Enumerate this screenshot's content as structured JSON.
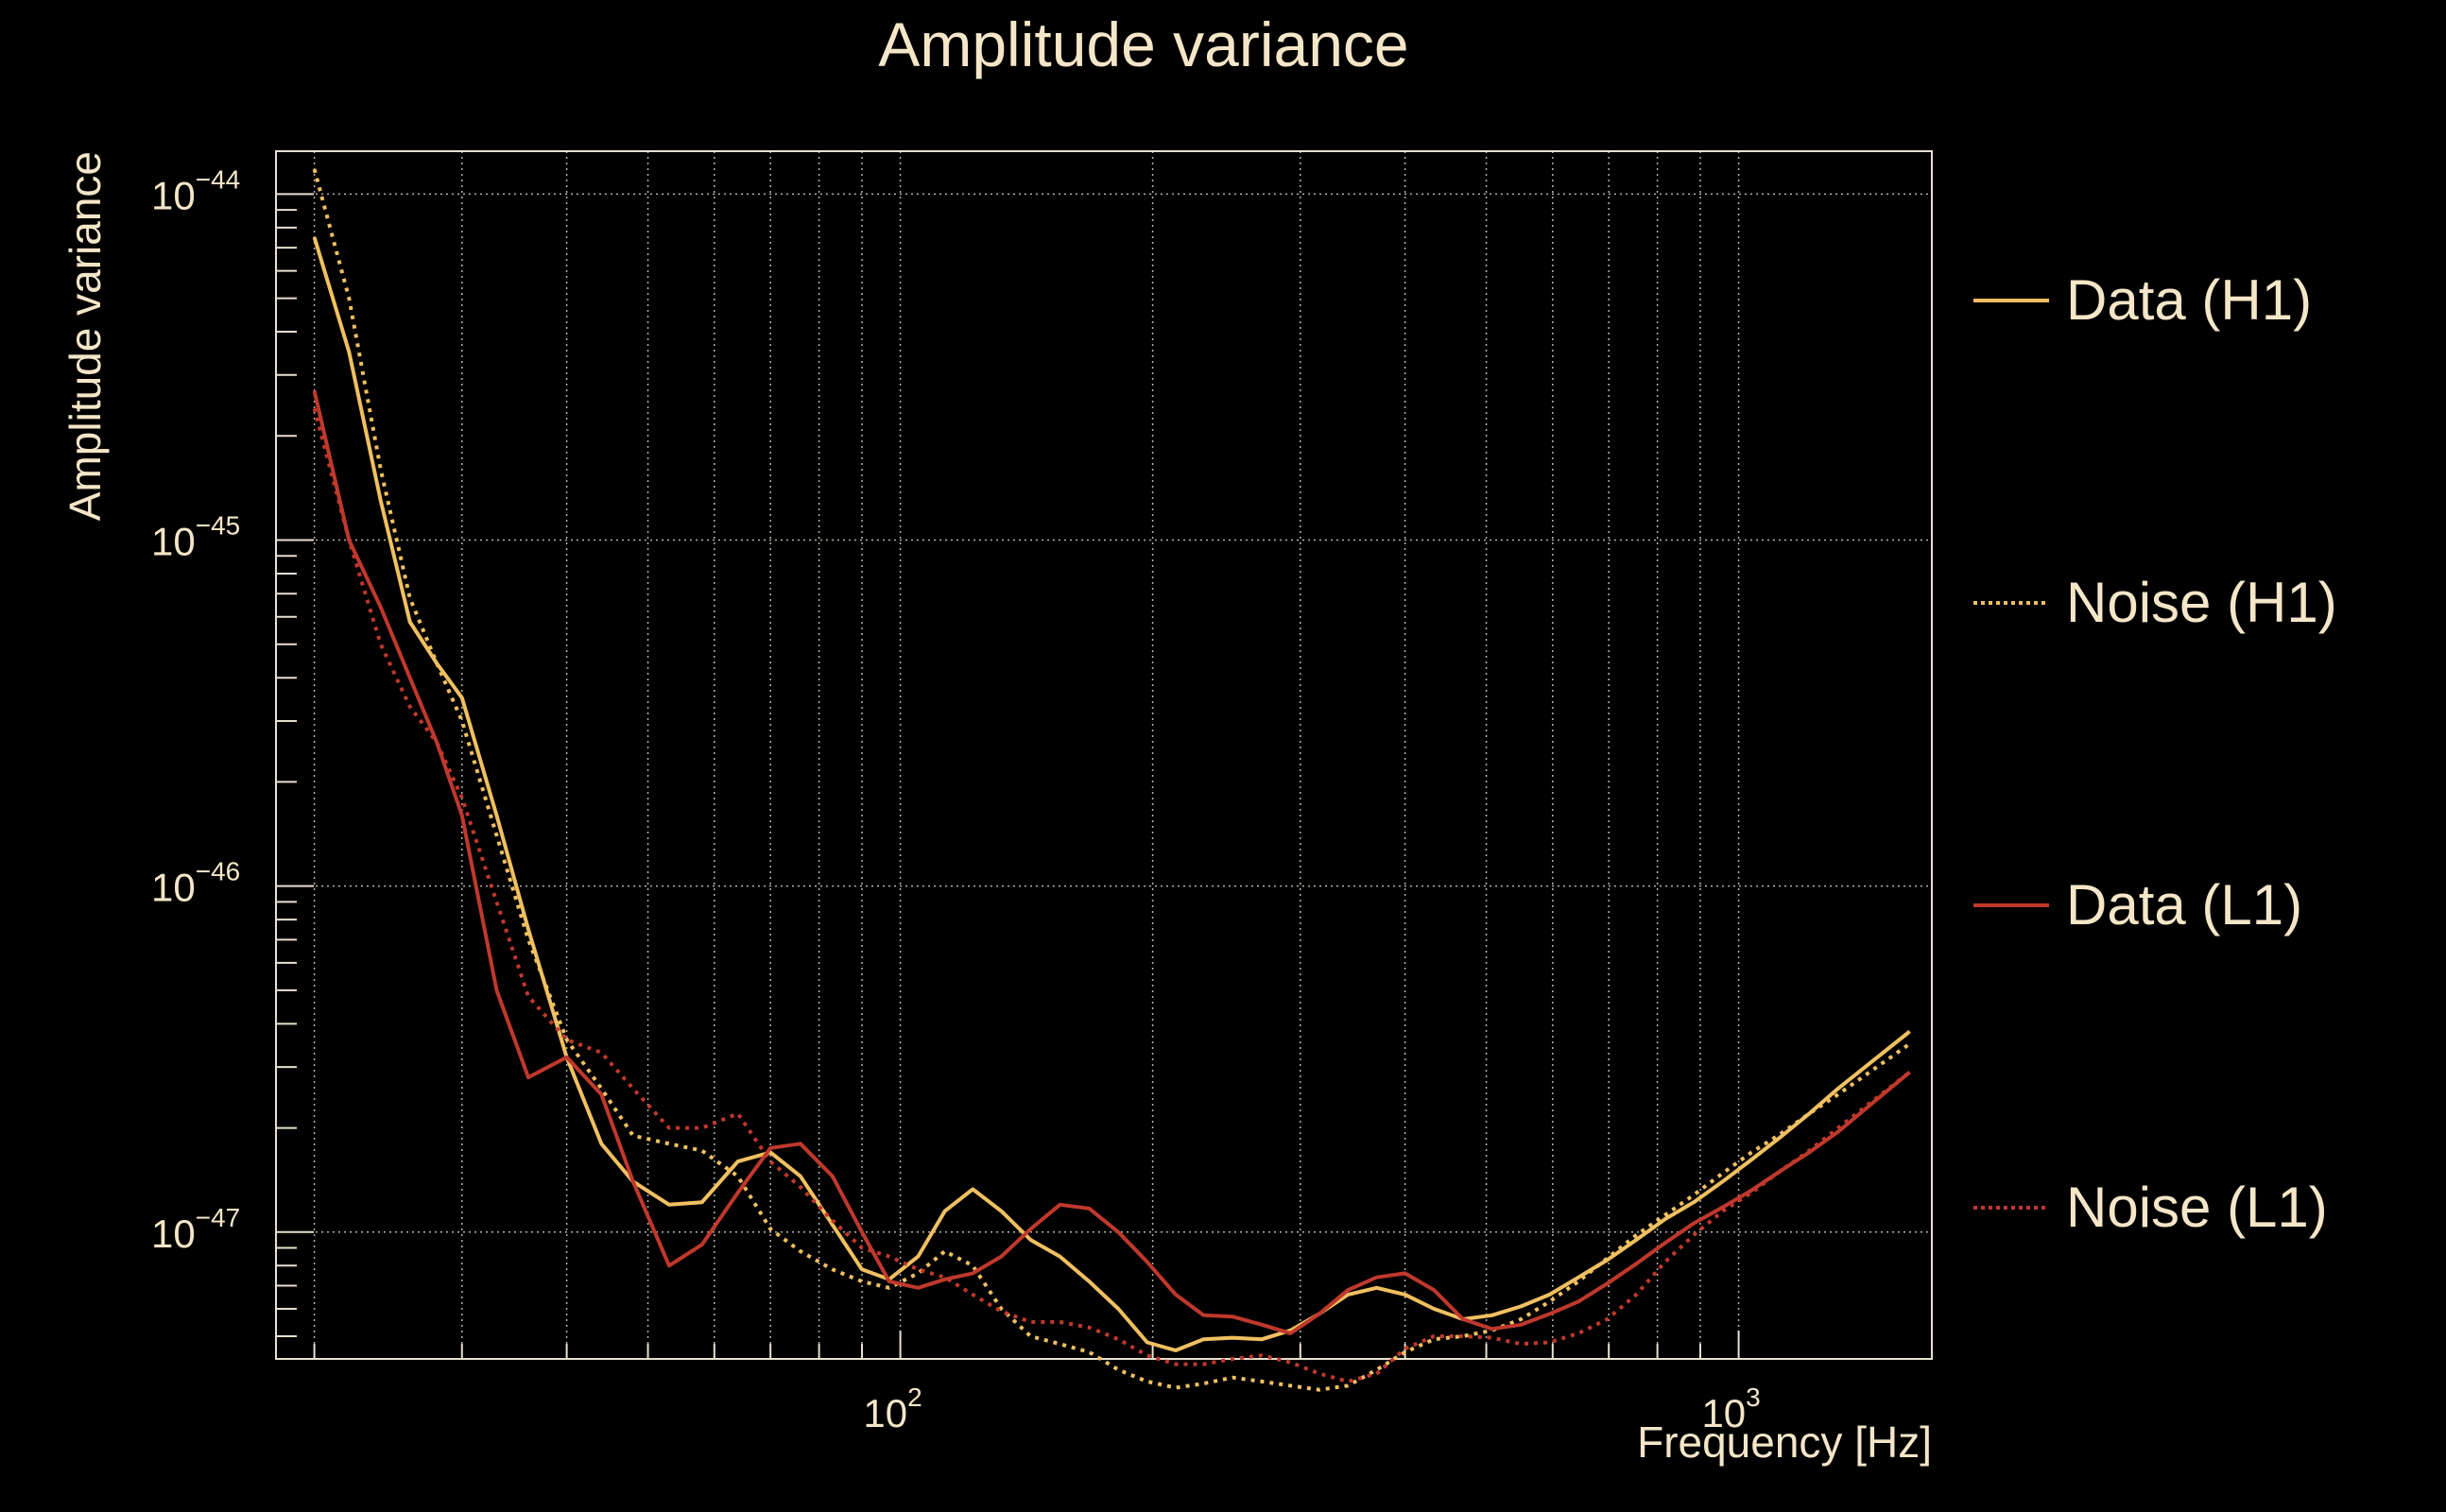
{
  "chart_data": {
    "type": "line",
    "title": "Amplitude variance",
    "xlabel": "Frequency [Hz]",
    "ylabel": "Amplitude variance",
    "x_scale": "log",
    "y_scale": "log",
    "xlim": [
      18,
      1700
    ],
    "ylim": [
      4.3e-48,
      1.33e-44
    ],
    "grid": true,
    "legend_position": "right",
    "x_ticks": [
      {
        "base": "10",
        "exp": "2",
        "value": 100
      },
      {
        "base": "10",
        "exp": "3",
        "value": 1000
      }
    ],
    "y_ticks": [
      {
        "base": "10",
        "exp": "−44",
        "value": 1e-44
      },
      {
        "base": "10",
        "exp": "−45",
        "value": 1e-45
      },
      {
        "base": "10",
        "exp": "−46",
        "value": 1e-46
      },
      {
        "base": "10",
        "exp": "−47",
        "value": 1e-47
      }
    ],
    "series": [
      {
        "name": "Data (H1)",
        "color": "#f0c060",
        "dash": "solid",
        "points": [
          [
            20,
            7.5e-45
          ],
          [
            22,
            3.5e-45
          ],
          [
            24,
            1.3e-45
          ],
          [
            26,
            5.8e-46
          ],
          [
            28,
            4.4e-46
          ],
          [
            30,
            3.5e-46
          ],
          [
            33,
            1.6e-46
          ],
          [
            36,
            7.5e-47
          ],
          [
            40,
            3.2e-47
          ],
          [
            44,
            1.8e-47
          ],
          [
            48,
            1.4e-47
          ],
          [
            53,
            1.2e-47
          ],
          [
            58,
            1.22e-47
          ],
          [
            64,
            1.6e-47
          ],
          [
            70,
            1.7e-47
          ],
          [
            76,
            1.45e-47
          ],
          [
            83,
            1.05e-47
          ],
          [
            90,
            7.8e-48
          ],
          [
            97,
            7.3e-48
          ],
          [
            105,
            8.5e-48
          ],
          [
            113,
            1.15e-47
          ],
          [
            122,
            1.33e-47
          ],
          [
            132,
            1.15e-47
          ],
          [
            143,
            9.5e-48
          ],
          [
            155,
            8.5e-48
          ],
          [
            168,
            7.2e-48
          ],
          [
            182,
            6e-48
          ],
          [
            197,
            4.8e-48
          ],
          [
            213,
            4.55e-48
          ],
          [
            230,
            4.9e-48
          ],
          [
            249,
            4.95e-48
          ],
          [
            270,
            4.9e-48
          ],
          [
            292,
            5.2e-48
          ],
          [
            316,
            5.8e-48
          ],
          [
            342,
            6.6e-48
          ],
          [
            370,
            6.9e-48
          ],
          [
            400,
            6.6e-48
          ],
          [
            433,
            6e-48
          ],
          [
            469,
            5.6e-48
          ],
          [
            508,
            5.75e-48
          ],
          [
            550,
            6.1e-48
          ],
          [
            595,
            6.6e-48
          ],
          [
            644,
            7.4e-48
          ],
          [
            697,
            8.3e-48
          ],
          [
            755,
            9.5e-48
          ],
          [
            817,
            1.09e-47
          ],
          [
            884,
            1.22e-47
          ],
          [
            957,
            1.4e-47
          ],
          [
            1036,
            1.62e-47
          ],
          [
            1121,
            1.88e-47
          ],
          [
            1214,
            2.2e-47
          ],
          [
            1314,
            2.6e-47
          ],
          [
            1600,
            3.8e-47
          ]
        ]
      },
      {
        "name": "Noise (H1)",
        "color": "#f0c060",
        "dash": "dotted",
        "points": [
          [
            20,
            1.18e-44
          ],
          [
            22,
            5e-45
          ],
          [
            24,
            1.6e-45
          ],
          [
            26,
            6.8e-46
          ],
          [
            28,
            4.4e-46
          ],
          [
            30,
            3e-46
          ],
          [
            33,
            1.4e-46
          ],
          [
            36,
            7e-47
          ],
          [
            40,
            3.6e-47
          ],
          [
            44,
            2.6e-47
          ],
          [
            48,
            1.9e-47
          ],
          [
            53,
            1.8e-47
          ],
          [
            58,
            1.72e-47
          ],
          [
            64,
            1.45e-47
          ],
          [
            70,
            1.02e-47
          ],
          [
            76,
            8.8e-48
          ],
          [
            83,
            7.8e-48
          ],
          [
            90,
            7.2e-48
          ],
          [
            97,
            6.9e-48
          ],
          [
            105,
            7.6e-48
          ],
          [
            113,
            8.8e-48
          ],
          [
            122,
            8e-48
          ],
          [
            132,
            6e-48
          ],
          [
            143,
            5e-48
          ],
          [
            155,
            4.75e-48
          ],
          [
            168,
            4.5e-48
          ],
          [
            182,
            4e-48
          ],
          [
            197,
            3.7e-48
          ],
          [
            213,
            3.55e-48
          ],
          [
            230,
            3.65e-48
          ],
          [
            249,
            3.8e-48
          ],
          [
            270,
            3.7e-48
          ],
          [
            292,
            3.6e-48
          ],
          [
            316,
            3.5e-48
          ],
          [
            342,
            3.6e-48
          ],
          [
            370,
            4e-48
          ],
          [
            400,
            4.5e-48
          ],
          [
            433,
            4.9e-48
          ],
          [
            469,
            5e-48
          ],
          [
            508,
            5.2e-48
          ],
          [
            550,
            5.6e-48
          ],
          [
            595,
            6.3e-48
          ],
          [
            644,
            7.2e-48
          ],
          [
            697,
            8.4e-48
          ],
          [
            755,
            9.8e-48
          ],
          [
            817,
            1.12e-47
          ],
          [
            884,
            1.28e-47
          ],
          [
            957,
            1.48e-47
          ],
          [
            1036,
            1.7e-47
          ],
          [
            1121,
            1.92e-47
          ],
          [
            1214,
            2.2e-47
          ],
          [
            1314,
            2.5e-47
          ],
          [
            1600,
            3.5e-47
          ]
        ]
      },
      {
        "name": "Data (L1)",
        "color": "#c0382c",
        "dash": "solid",
        "points": [
          [
            20,
            2.7e-45
          ],
          [
            22,
            1e-45
          ],
          [
            24,
            6.4e-46
          ],
          [
            26,
            4e-46
          ],
          [
            28,
            2.6e-46
          ],
          [
            30,
            1.6e-46
          ],
          [
            33,
            5e-47
          ],
          [
            36,
            2.8e-47
          ],
          [
            40,
            3.2e-47
          ],
          [
            44,
            2.5e-47
          ],
          [
            48,
            1.4e-47
          ],
          [
            53,
            8e-48
          ],
          [
            58,
            9.2e-48
          ],
          [
            64,
            1.3e-47
          ],
          [
            70,
            1.75e-47
          ],
          [
            76,
            1.8e-47
          ],
          [
            83,
            1.45e-47
          ],
          [
            90,
            1e-47
          ],
          [
            97,
            7.2e-48
          ],
          [
            105,
            6.9e-48
          ],
          [
            113,
            7.3e-48
          ],
          [
            122,
            7.6e-48
          ],
          [
            132,
            8.5e-48
          ],
          [
            143,
            1.02e-47
          ],
          [
            155,
            1.2e-47
          ],
          [
            168,
            1.17e-47
          ],
          [
            182,
            1e-47
          ],
          [
            197,
            8.2e-48
          ],
          [
            213,
            6.6e-48
          ],
          [
            230,
            5.75e-48
          ],
          [
            249,
            5.7e-48
          ],
          [
            270,
            5.4e-48
          ],
          [
            292,
            5.1e-48
          ],
          [
            316,
            5.8e-48
          ],
          [
            342,
            6.8e-48
          ],
          [
            370,
            7.4e-48
          ],
          [
            400,
            7.6e-48
          ],
          [
            433,
            6.8e-48
          ],
          [
            469,
            5.6e-48
          ],
          [
            508,
            5.25e-48
          ],
          [
            550,
            5.4e-48
          ],
          [
            595,
            5.8e-48
          ],
          [
            644,
            6.3e-48
          ],
          [
            697,
            7.1e-48
          ],
          [
            755,
            8.1e-48
          ],
          [
            817,
            9.3e-48
          ],
          [
            884,
            1.06e-47
          ],
          [
            957,
            1.18e-47
          ],
          [
            1036,
            1.32e-47
          ],
          [
            1121,
            1.5e-47
          ],
          [
            1214,
            1.7e-47
          ],
          [
            1314,
            1.95e-47
          ],
          [
            1600,
            2.9e-47
          ]
        ]
      },
      {
        "name": "Noise (L1)",
        "color": "#c0382c",
        "dash": "dotted",
        "points": [
          [
            20,
            2.4e-45
          ],
          [
            22,
            1e-45
          ],
          [
            24,
            5e-46
          ],
          [
            26,
            3.3e-46
          ],
          [
            28,
            2.6e-46
          ],
          [
            30,
            1.8e-46
          ],
          [
            33,
            9e-47
          ],
          [
            36,
            4.8e-47
          ],
          [
            40,
            3.6e-47
          ],
          [
            44,
            3.3e-47
          ],
          [
            48,
            2.6e-47
          ],
          [
            53,
            2e-47
          ],
          [
            58,
            2e-47
          ],
          [
            64,
            2.2e-47
          ],
          [
            70,
            1.6e-47
          ],
          [
            76,
            1.35e-47
          ],
          [
            83,
            1.08e-47
          ],
          [
            90,
            9e-48
          ],
          [
            97,
            8.5e-48
          ],
          [
            105,
            7.8e-48
          ],
          [
            113,
            7.4e-48
          ],
          [
            122,
            6.6e-48
          ],
          [
            132,
            5.9e-48
          ],
          [
            143,
            5.5e-48
          ],
          [
            155,
            5.5e-48
          ],
          [
            168,
            5.3e-48
          ],
          [
            182,
            4.9e-48
          ],
          [
            197,
            4.4e-48
          ],
          [
            213,
            4.15e-48
          ],
          [
            230,
            4.15e-48
          ],
          [
            249,
            4.3e-48
          ],
          [
            270,
            4.4e-48
          ],
          [
            292,
            4.2e-48
          ],
          [
            316,
            3.9e-48
          ],
          [
            342,
            3.7e-48
          ],
          [
            370,
            3.9e-48
          ],
          [
            400,
            4.6e-48
          ],
          [
            433,
            5e-48
          ],
          [
            469,
            5e-48
          ],
          [
            508,
            4.95e-48
          ],
          [
            550,
            4.75e-48
          ],
          [
            595,
            4.8e-48
          ],
          [
            644,
            5.1e-48
          ],
          [
            697,
            5.6e-48
          ],
          [
            755,
            6.6e-48
          ],
          [
            817,
            8.2e-48
          ],
          [
            884,
            9.8e-48
          ],
          [
            957,
            1.15e-47
          ],
          [
            1036,
            1.3e-47
          ],
          [
            1121,
            1.5e-47
          ],
          [
            1214,
            1.72e-47
          ],
          [
            1314,
            2e-47
          ],
          [
            1600,
            2.9e-47
          ]
        ]
      }
    ]
  }
}
